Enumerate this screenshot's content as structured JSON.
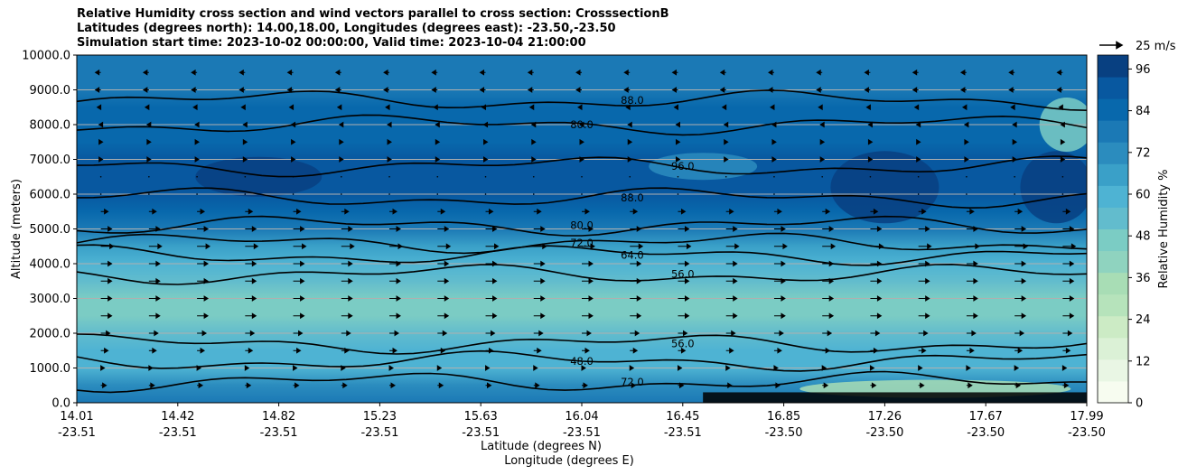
{
  "titles": [
    "Relative Humidity cross section and wind vectors parallel to cross section: CrosssectionB",
    "Latitudes (degrees north): 14.00,18.00, Longitudes (degrees east): -23.50,-23.50",
    "Simulation start time: 2023-10-02 00:00:00, Valid time: 2023-10-04 21:00:00"
  ],
  "chart_data": {
    "type": "contour",
    "ylabel": "Altitude (meters)",
    "xlabel_1": "Latitude (degrees N)",
    "xlabel_2": "Longitude (degrees E)",
    "y_ticks": [
      "0.0",
      "1000.0",
      "2000.0",
      "3000.0",
      "4000.0",
      "5000.0",
      "6000.0",
      "7000.0",
      "8000.0",
      "9000.0",
      "10000.0"
    ],
    "ylim": [
      0,
      10000
    ],
    "x_ticks": [
      {
        "lat": "14.01",
        "lon": "-23.51"
      },
      {
        "lat": "14.42",
        "lon": "-23.51"
      },
      {
        "lat": "14.82",
        "lon": "-23.51"
      },
      {
        "lat": "15.23",
        "lon": "-23.51"
      },
      {
        "lat": "15.63",
        "lon": "-23.51"
      },
      {
        "lat": "16.04",
        "lon": "-23.51"
      },
      {
        "lat": "16.45",
        "lon": "-23.51"
      },
      {
        "lat": "16.85",
        "lon": "-23.50"
      },
      {
        "lat": "17.26",
        "lon": "-23.50"
      },
      {
        "lat": "17.67",
        "lon": "-23.50"
      },
      {
        "lat": "17.99",
        "lon": "-23.50"
      }
    ],
    "colorbar": {
      "label": "Relative Humidity %",
      "ticks": [
        "0",
        "12",
        "24",
        "36",
        "48",
        "60",
        "72",
        "84",
        "96"
      ],
      "range": [
        0,
        100
      ],
      "colors": [
        "#f7fcf0",
        "#e9f6e4",
        "#dbf1d6",
        "#ccebc5",
        "#b6e3bb",
        "#a8ddb5",
        "#8fd3bf",
        "#7bccc4",
        "#62bccd",
        "#4eb3d3",
        "#3aa0c8",
        "#2b8cbe",
        "#1b79b5",
        "#0868ac",
        "#0858a0",
        "#084081"
      ]
    },
    "quiver_key": {
      "label": "25 m/s"
    },
    "rh_profile": [
      {
        "alt": 0,
        "rh": 80
      },
      {
        "alt": 500,
        "rh": 70
      },
      {
        "alt": 1000,
        "rh": 60
      },
      {
        "alt": 1500,
        "rh": 58
      },
      {
        "alt": 2000,
        "rh": 52
      },
      {
        "alt": 2500,
        "rh": 47
      },
      {
        "alt": 3000,
        "rh": 49
      },
      {
        "alt": 3500,
        "rh": 53
      },
      {
        "alt": 4000,
        "rh": 60
      },
      {
        "alt": 4500,
        "rh": 66
      },
      {
        "alt": 5000,
        "rh": 76
      },
      {
        "alt": 5500,
        "rh": 86
      },
      {
        "alt": 6000,
        "rh": 90
      },
      {
        "alt": 6500,
        "rh": 92
      },
      {
        "alt": 7000,
        "rh": 88
      },
      {
        "alt": 7500,
        "rh": 86
      },
      {
        "alt": 8000,
        "rh": 82
      },
      {
        "alt": 8500,
        "rh": 83
      },
      {
        "alt": 9000,
        "rh": 80
      },
      {
        "alt": 9500,
        "rh": 79
      },
      {
        "alt": 10000,
        "rh": 78
      }
    ],
    "contour_lines": [
      {
        "label": "72.0",
        "alt": 4600
      },
      {
        "label": "64.0",
        "alt": 4250
      },
      {
        "label": "56.0",
        "alt": 3700
      },
      {
        "label": "80.0",
        "alt": 5100
      },
      {
        "label": "88.0",
        "alt": 5900
      },
      {
        "label": "96.0",
        "alt": 6800
      },
      {
        "label": "80.0",
        "alt": 8000
      },
      {
        "label": "88.0",
        "alt": 8700
      },
      {
        "label": "56.0",
        "alt": 1700
      },
      {
        "label": "48.0",
        "alt": 1200
      },
      {
        "label": "72.0",
        "alt": 600
      }
    ],
    "contour_labels": [
      "80.0",
      "88.0",
      "96.0",
      "80.0",
      "72.0",
      "64.0",
      "56.0",
      "48.0",
      "56.0",
      "80.0",
      "88.0",
      "96.0",
      "88.0",
      "80.0",
      "72.0",
      "64.0",
      "48.0"
    ],
    "wind_rows": [
      {
        "alt": 500,
        "u": 3
      },
      {
        "alt": 1000,
        "u": 2
      },
      {
        "alt": 1500,
        "u": 4
      },
      {
        "alt": 2000,
        "u": 5
      },
      {
        "alt": 2500,
        "u": 6
      },
      {
        "alt": 3000,
        "u": 6
      },
      {
        "alt": 3500,
        "u": 6
      },
      {
        "alt": 4000,
        "u": 6
      },
      {
        "alt": 4500,
        "u": 7
      },
      {
        "alt": 5000,
        "u": 6
      },
      {
        "alt": 5500,
        "u": 4
      },
      {
        "alt": 6000,
        "u": 0
      },
      {
        "alt": 6500,
        "u": 0
      },
      {
        "alt": 7000,
        "u": 1
      },
      {
        "alt": 7500,
        "u": 1
      },
      {
        "alt": 8000,
        "u": -1
      },
      {
        "alt": 8500,
        "u": -2
      },
      {
        "alt": 9000,
        "u": -3
      },
      {
        "alt": 9500,
        "u": -3
      }
    ]
  }
}
